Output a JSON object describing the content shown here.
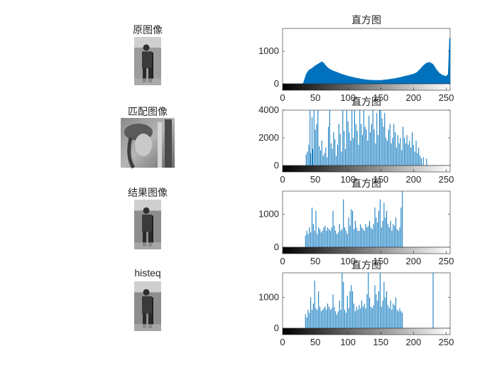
{
  "images": [
    {
      "title": "原图像",
      "kind": "man-dark"
    },
    {
      "title": "匹配图像",
      "kind": "lena"
    },
    {
      "title": "结果图像",
      "kind": "man-mid"
    },
    {
      "title": "histeq",
      "kind": "man-mid"
    }
  ],
  "colors": {
    "bar": "#0072bd",
    "axis": "#262626",
    "frame": "#262626"
  },
  "chart_data": [
    {
      "type": "bar",
      "title": "直方图",
      "xlim": [
        0,
        256
      ],
      "ylim": [
        0,
        1700
      ],
      "xticks": [
        0,
        50,
        100,
        150,
        200,
        250
      ],
      "yticks": [
        0,
        1000
      ],
      "series_kind": "area",
      "x": [
        0,
        30,
        32,
        36,
        40,
        45,
        50,
        55,
        60,
        63,
        66,
        70,
        75,
        80,
        85,
        90,
        100,
        110,
        120,
        130,
        140,
        150,
        160,
        170,
        180,
        190,
        200,
        205,
        210,
        215,
        220,
        225,
        230,
        235,
        240,
        245,
        250,
        253,
        255,
        256
      ],
      "values": [
        0,
        0,
        40,
        300,
        420,
        480,
        560,
        620,
        680,
        640,
        560,
        480,
        420,
        380,
        340,
        300,
        240,
        190,
        150,
        120,
        110,
        110,
        130,
        160,
        200,
        250,
        300,
        350,
        450,
        560,
        640,
        660,
        600,
        440,
        320,
        260,
        230,
        300,
        1400,
        1400
      ]
    },
    {
      "type": "bar",
      "title": "直方图",
      "xlim": [
        0,
        256
      ],
      "ylim": [
        0,
        4000
      ],
      "xticks": [
        0,
        50,
        100,
        150,
        200,
        250
      ],
      "yticks": [
        0,
        2000,
        4000
      ],
      "series_kind": "stems",
      "x": [
        36,
        38,
        40,
        42,
        43,
        45,
        46,
        48,
        50,
        52,
        54,
        56,
        58,
        60,
        62,
        64,
        66,
        68,
        70,
        72,
        74,
        76,
        78,
        80,
        82,
        84,
        86,
        88,
        90,
        92,
        94,
        96,
        98,
        100,
        102,
        104,
        106,
        108,
        110,
        112,
        114,
        116,
        118,
        120,
        122,
        124,
        126,
        128,
        130,
        132,
        134,
        136,
        138,
        140,
        142,
        144,
        146,
        148,
        150,
        152,
        154,
        156,
        158,
        160,
        162,
        164,
        166,
        168,
        170,
        172,
        174,
        176,
        178,
        180,
        182,
        184,
        186,
        188,
        190,
        192,
        194,
        196,
        198,
        200,
        202,
        204,
        206,
        208,
        210,
        212,
        215,
        220
      ],
      "values": [
        800,
        1000,
        1500,
        4000,
        900,
        3500,
        1200,
        4000,
        2600,
        3000,
        4000,
        1400,
        1100,
        1800,
        700,
        900,
        1300,
        600,
        2800,
        4000,
        1600,
        1200,
        2400,
        1900,
        700,
        1500,
        3000,
        2300,
        1000,
        4000,
        2500,
        1200,
        4000,
        3200,
        2400,
        1800,
        4000,
        2000,
        4000,
        3000,
        2500,
        1500,
        4000,
        3000,
        2200,
        4000,
        2800,
        2600,
        1800,
        3600,
        2400,
        3000,
        4000,
        2600,
        1600,
        3800,
        2200,
        4000,
        4000,
        3400,
        2800,
        3800,
        2000,
        1800,
        2600,
        3000,
        1600,
        2000,
        3000,
        2400,
        1300,
        2200,
        1600,
        2000,
        1100,
        2800,
        2000,
        1600,
        2200,
        1500,
        1800,
        1300,
        2400,
        1500,
        1000,
        1800,
        900,
        1300,
        700,
        500,
        600,
        500
      ]
    },
    {
      "type": "bar",
      "title": "直方图",
      "xlim": [
        0,
        256
      ],
      "ylim": [
        0,
        1700
      ],
      "xticks": [
        0,
        50,
        100,
        150,
        200,
        250
      ],
      "yticks": [
        0,
        1000
      ],
      "series_kind": "stems",
      "x": [
        35,
        37,
        39,
        41,
        43,
        45,
        47,
        49,
        51,
        53,
        55,
        57,
        59,
        61,
        63,
        65,
        67,
        69,
        71,
        73,
        75,
        77,
        79,
        81,
        83,
        85,
        87,
        89,
        91,
        93,
        95,
        97,
        99,
        101,
        103,
        105,
        107,
        109,
        111,
        113,
        115,
        117,
        119,
        121,
        123,
        125,
        127,
        129,
        131,
        133,
        135,
        137,
        139,
        141,
        143,
        145,
        147,
        149,
        151,
        153,
        155,
        157,
        159,
        161,
        163,
        165,
        167,
        169,
        171,
        173,
        175,
        177,
        179,
        181,
        183,
        185
      ],
      "values": [
        350,
        500,
        400,
        600,
        450,
        1200,
        700,
        500,
        1100,
        400,
        600,
        550,
        450,
        500,
        600,
        650,
        500,
        600,
        550,
        500,
        600,
        1100,
        650,
        500,
        400,
        450,
        700,
        500,
        550,
        1450,
        600,
        500,
        400,
        900,
        650,
        1150,
        1100,
        550,
        800,
        600,
        500,
        500,
        700,
        600,
        550,
        500,
        700,
        600,
        650,
        800,
        600,
        550,
        700,
        1200,
        900,
        750,
        1100,
        1450,
        600,
        800,
        1350,
        900,
        1100,
        700,
        600,
        800,
        500,
        700,
        650,
        900,
        550,
        500,
        600,
        1200,
        1700,
        0
      ]
    },
    {
      "type": "bar",
      "title": "直方图",
      "xlim": [
        0,
        256
      ],
      "ylim": [
        0,
        1800
      ],
      "xticks": [
        0,
        50,
        100,
        150,
        200,
        250
      ],
      "yticks": [
        0,
        1000
      ],
      "series_kind": "stems",
      "x": [
        35,
        37,
        39,
        41,
        43,
        45,
        47,
        49,
        51,
        53,
        55,
        57,
        59,
        61,
        63,
        65,
        67,
        69,
        71,
        73,
        75,
        77,
        79,
        81,
        83,
        85,
        87,
        89,
        91,
        93,
        95,
        97,
        99,
        101,
        103,
        105,
        107,
        109,
        111,
        113,
        115,
        117,
        119,
        121,
        123,
        125,
        127,
        129,
        131,
        133,
        135,
        137,
        139,
        141,
        143,
        145,
        147,
        149,
        151,
        153,
        155,
        157,
        159,
        161,
        163,
        165,
        167,
        169,
        171,
        173,
        175,
        177,
        179,
        181,
        183,
        230
      ],
      "values": [
        450,
        350,
        600,
        500,
        1000,
        600,
        800,
        1550,
        650,
        600,
        1200,
        700,
        550,
        600,
        650,
        700,
        600,
        800,
        700,
        600,
        650,
        1100,
        700,
        550,
        450,
        550,
        900,
        600,
        1800,
        1500,
        600,
        500,
        1050,
        650,
        1200,
        1400,
        1200,
        800,
        550,
        700,
        600,
        750,
        650,
        900,
        700,
        800,
        650,
        1100,
        1800,
        1000,
        700,
        650,
        750,
        1400,
        1100,
        900,
        1200,
        1800,
        700,
        900,
        1500,
        1000,
        1200,
        750,
        650,
        900,
        600,
        800,
        750,
        1000,
        600,
        550,
        650,
        550,
        500,
        1800
      ]
    }
  ]
}
